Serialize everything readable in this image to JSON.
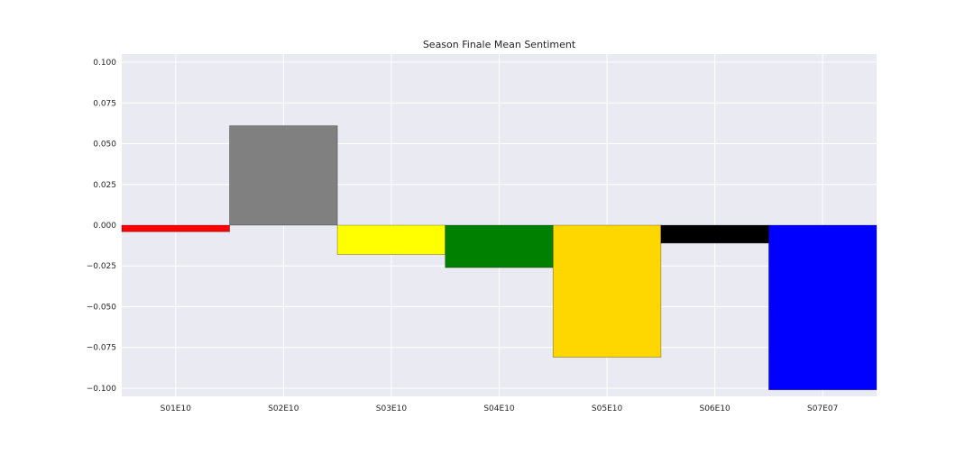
{
  "chart_data": {
    "type": "bar",
    "title": "Season Finale Mean Sentiment",
    "xlabel": "",
    "ylabel": "",
    "categories": [
      "S01E10",
      "S02E10",
      "S03E10",
      "S04E10",
      "S05E10",
      "S06E10",
      "S07E07"
    ],
    "values": [
      -0.004,
      0.061,
      -0.018,
      -0.026,
      -0.081,
      -0.011,
      -0.101
    ],
    "colors": [
      "#ff0000",
      "#808080",
      "#ffff00",
      "#008000",
      "#ffd700",
      "#000000",
      "#0000ff"
    ],
    "ylim": [
      -0.105,
      0.105
    ],
    "yticks": [
      0.1,
      0.075,
      0.05,
      0.025,
      0.0,
      -0.025,
      -0.05,
      -0.075,
      -0.1
    ],
    "ytick_labels": [
      "0.100",
      "0.075",
      "0.050",
      "0.025",
      "0.000",
      "−0.025",
      "−0.050",
      "−0.075",
      "−0.100"
    ],
    "grid": true,
    "legend": "none",
    "background": "#eaeaf2"
  }
}
